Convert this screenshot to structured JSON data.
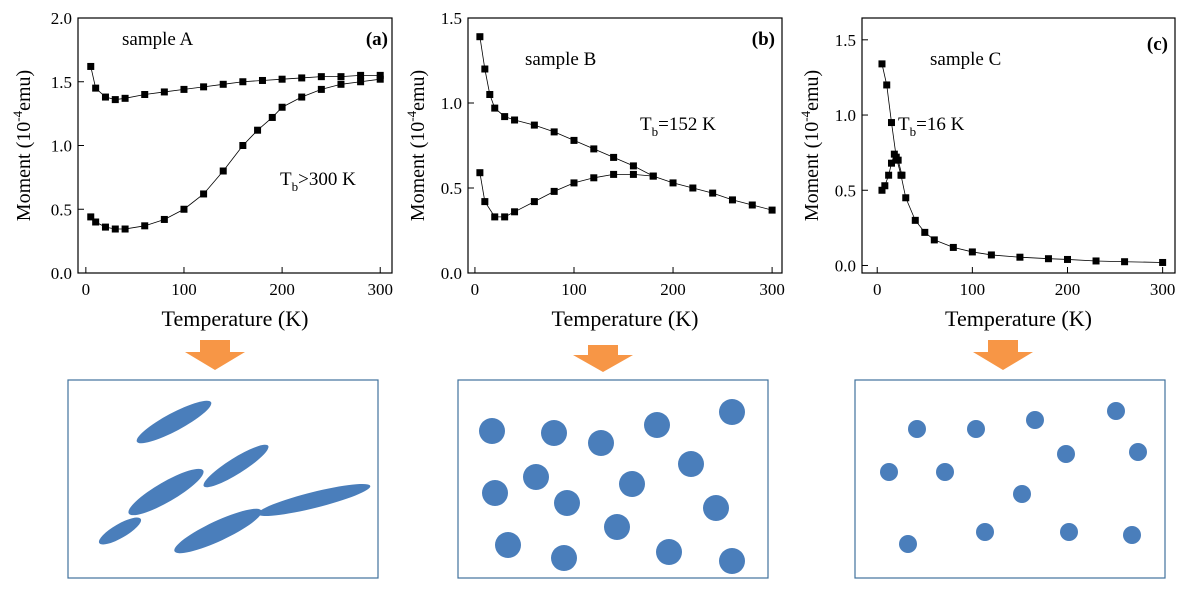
{
  "chart_data": [
    {
      "type": "scatter",
      "subtitle": "sample A",
      "panel": "(a)",
      "annotation": [
        "T",
        "b",
        ">300 K"
      ],
      "x_label": "Temperature (K)",
      "y_label": [
        "Moment (10",
        "-4",
        "emu)"
      ],
      "xlim": [
        -8,
        312
      ],
      "ylim": [
        0,
        2
      ],
      "xticks": [
        0,
        100,
        200,
        300
      ],
      "yticks": [
        {
          "value": 0,
          "label": "0.0"
        },
        0.5,
        {
          "value": 1,
          "label": "1.0"
        },
        1.5,
        {
          "value": 2,
          "label": "2.0"
        }
      ],
      "series": [
        {
          "color": "#000000",
          "x": [
            5,
            10,
            20,
            30,
            40,
            60,
            80,
            100,
            120,
            140,
            160,
            175,
            190,
            200,
            220,
            240,
            260,
            280,
            300
          ],
          "values": [
            0.44,
            0.4,
            0.36,
            0.345,
            0.345,
            0.37,
            0.42,
            0.5,
            0.62,
            0.8,
            1.0,
            1.12,
            1.22,
            1.3,
            1.38,
            1.44,
            1.48,
            1.5,
            1.52
          ]
        },
        {
          "color": "#000000",
          "x": [
            5,
            10,
            20,
            30,
            40,
            60,
            80,
            100,
            120,
            140,
            160,
            180,
            200,
            220,
            240,
            260,
            280,
            300
          ],
          "values": [
            1.62,
            1.45,
            1.38,
            1.36,
            1.37,
            1.4,
            1.42,
            1.44,
            1.46,
            1.48,
            1.5,
            1.51,
            1.52,
            1.53,
            1.54,
            1.54,
            1.55,
            1.55
          ]
        }
      ]
    },
    {
      "type": "scatter",
      "subtitle": "sample B",
      "panel": "(b)",
      "annotation": [
        "T",
        "b",
        "=152 K"
      ],
      "x_label": "Temperature (K)",
      "y_label": [
        "Moment (10",
        "-4",
        "emu)"
      ],
      "xlim": [
        -7,
        310
      ],
      "ylim": [
        0,
        1.5
      ],
      "xticks": [
        0,
        100,
        200,
        300
      ],
      "yticks": [
        {
          "value": 0,
          "label": "0.0"
        },
        0.5,
        {
          "value": 1,
          "label": "1.0"
        },
        1.5
      ],
      "series": [
        {
          "color": "#000000",
          "x": [
            5,
            10,
            15,
            20,
            30,
            40,
            60,
            80,
            100,
            120,
            140,
            160,
            180,
            200,
            220,
            240,
            260,
            280,
            300
          ],
          "values": [
            1.39,
            1.2,
            1.05,
            0.97,
            0.92,
            0.9,
            0.87,
            0.83,
            0.78,
            0.73,
            0.68,
            0.63,
            0.57,
            0.53,
            0.5,
            0.47,
            0.43,
            0.4,
            0.37
          ]
        },
        {
          "color": "#000000",
          "x": [
            5,
            10,
            20,
            30,
            40,
            60,
            80,
            100,
            120,
            140,
            160,
            180
          ],
          "values": [
            0.59,
            0.42,
            0.33,
            0.33,
            0.36,
            0.42,
            0.48,
            0.53,
            0.56,
            0.58,
            0.58,
            0.57
          ]
        }
      ]
    },
    {
      "type": "scatter",
      "subtitle": "sample C",
      "panel": "(c)",
      "annotation": [
        "T",
        "b",
        "=16 K"
      ],
      "x_label": "Temperature (K)",
      "y_label": [
        "Moment (10",
        "-4",
        "emu)"
      ],
      "xlim": [
        -16,
        313
      ],
      "ylim": [
        -0.05,
        1.645
      ],
      "xticks": [
        0,
        100,
        200,
        300
      ],
      "yticks": [
        {
          "value": 0,
          "label": "0.0"
        },
        0.5,
        {
          "value": 1,
          "label": "1.0"
        },
        1.5
      ],
      "series": [
        {
          "color": "#000000",
          "x": [
            5,
            10,
            15,
            20,
            25,
            30,
            40,
            50,
            60,
            80,
            100,
            120,
            150,
            180,
            200,
            230,
            260,
            300
          ],
          "values": [
            1.34,
            1.2,
            0.95,
            0.72,
            0.6,
            0.45,
            0.3,
            0.22,
            0.17,
            0.12,
            0.09,
            0.07,
            0.055,
            0.045,
            0.04,
            0.03,
            0.025,
            0.02
          ]
        },
        {
          "color": "#000000",
          "x": [
            5,
            8,
            12,
            15,
            18,
            22,
            26
          ],
          "values": [
            0.5,
            0.53,
            0.6,
            0.68,
            0.74,
            0.7,
            0.6
          ]
        }
      ]
    }
  ]
}
